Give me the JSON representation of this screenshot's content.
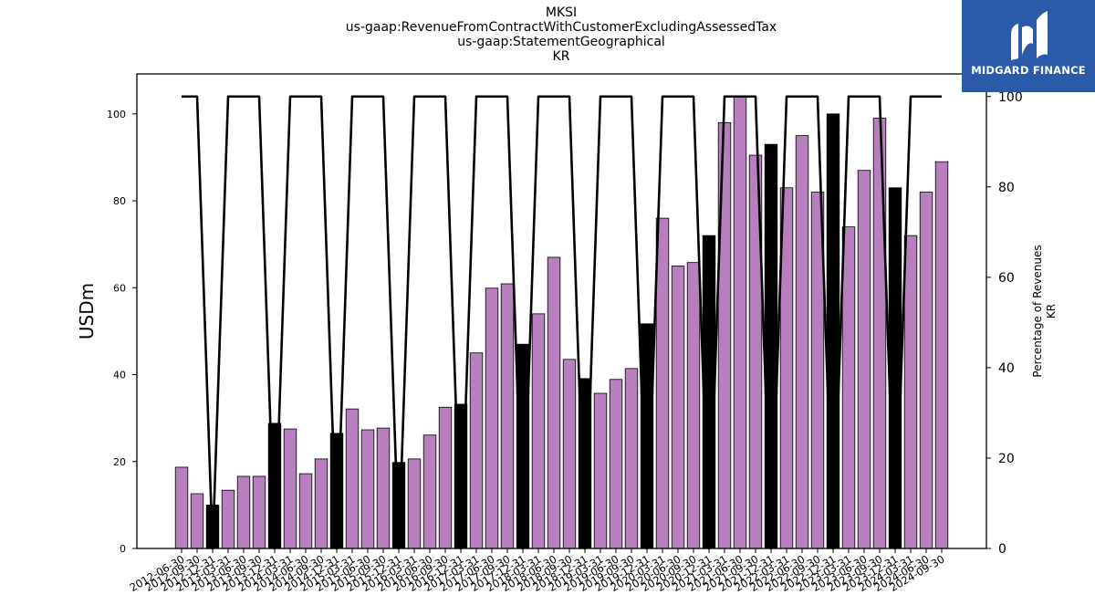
{
  "titles": {
    "line1": "MKSI",
    "line2": "us-gaap:RevenueFromContractWithCustomerExcludingAssessedTax",
    "line3": "us-gaap:StatementGeographical",
    "line4": "KR"
  },
  "logo": {
    "text": "MIDGARD FINANCE",
    "icon": "midgard-logo-icon",
    "background": "#2b5aa8"
  },
  "chart_data": {
    "type": "bar",
    "title": "MKSI",
    "ylabel": "USDm",
    "y2label_line1": "Percentage of Revenues",
    "y2label_line2": "KR",
    "ylim": [
      0,
      109.2
    ],
    "y2lim": [
      0,
      105
    ],
    "yticks": [
      0,
      20,
      40,
      60,
      80,
      100
    ],
    "y2ticks": [
      0,
      20,
      40,
      60,
      80,
      100
    ],
    "grid": false,
    "colors": {
      "bar": "#b77fbd",
      "bar_highlight": "#000000",
      "line": "#000000"
    },
    "categories": [
      "2012-06-30",
      "2012-09-30",
      "2012-12-31",
      "2013-03-31",
      "2013-06-30",
      "2013-09-30",
      "2013-12-31",
      "2014-03-31",
      "2014-06-30",
      "2014-09-30",
      "2014-12-31",
      "2015-03-31",
      "2015-06-30",
      "2015-09-30",
      "2015-12-31",
      "2016-03-31",
      "2016-06-30",
      "2016-09-30",
      "2016-12-31",
      "2017-03-31",
      "2017-06-30",
      "2017-09-30",
      "2017-12-31",
      "2018-03-31",
      "2018-06-30",
      "2018-09-30",
      "2018-12-31",
      "2019-03-31",
      "2019-06-30",
      "2019-09-30",
      "2019-12-31",
      "2020-03-31",
      "2020-06-30",
      "2020-09-30",
      "2020-12-31",
      "2021-03-31",
      "2021-06-30",
      "2021-09-30",
      "2021-12-31",
      "2022-03-31",
      "2022-06-30",
      "2022-09-30",
      "2022-12-31",
      "2023-03-31",
      "2023-06-30",
      "2023-09-30",
      "2023-12-31",
      "2024-03-31",
      "2024-06-30",
      "2024-09-30"
    ],
    "values": [
      18.7,
      12.6,
      10.0,
      13.4,
      16.6,
      16.6,
      28.8,
      27.5,
      17.2,
      20.6,
      26.5,
      32.1,
      27.3,
      27.7,
      19.8,
      20.6,
      26.1,
      32.5,
      33.2,
      45.0,
      59.9,
      60.9,
      47.0,
      54.0,
      67.0,
      43.5,
      39.1,
      35.7,
      38.9,
      41.4,
      51.7,
      76.0,
      65.0,
      65.8,
      72.0,
      98.0,
      104.0,
      90.5,
      93.0,
      83.0,
      95.0,
      82.0,
      100.0,
      74.0,
      87.0,
      99.0,
      83.0,
      72.0,
      82.0,
      89.0
    ],
    "highlight": [
      false,
      false,
      true,
      false,
      false,
      false,
      true,
      false,
      false,
      false,
      true,
      false,
      false,
      false,
      true,
      false,
      false,
      false,
      true,
      false,
      false,
      false,
      true,
      false,
      false,
      false,
      true,
      false,
      false,
      false,
      true,
      false,
      false,
      false,
      true,
      false,
      false,
      false,
      true,
      false,
      false,
      false,
      true,
      false,
      false,
      false,
      true,
      false,
      false,
      false
    ],
    "percentage": [
      100,
      100,
      0,
      100,
      100,
      100,
      0,
      100,
      100,
      100,
      0,
      100,
      100,
      100,
      0,
      100,
      100,
      100,
      0,
      100,
      100,
      100,
      0,
      100,
      100,
      100,
      0,
      100,
      100,
      100,
      0,
      100,
      100,
      100,
      0,
      100,
      100,
      100,
      0,
      100,
      100,
      100,
      0,
      100,
      100,
      100,
      0,
      100,
      100,
      100
    ]
  }
}
